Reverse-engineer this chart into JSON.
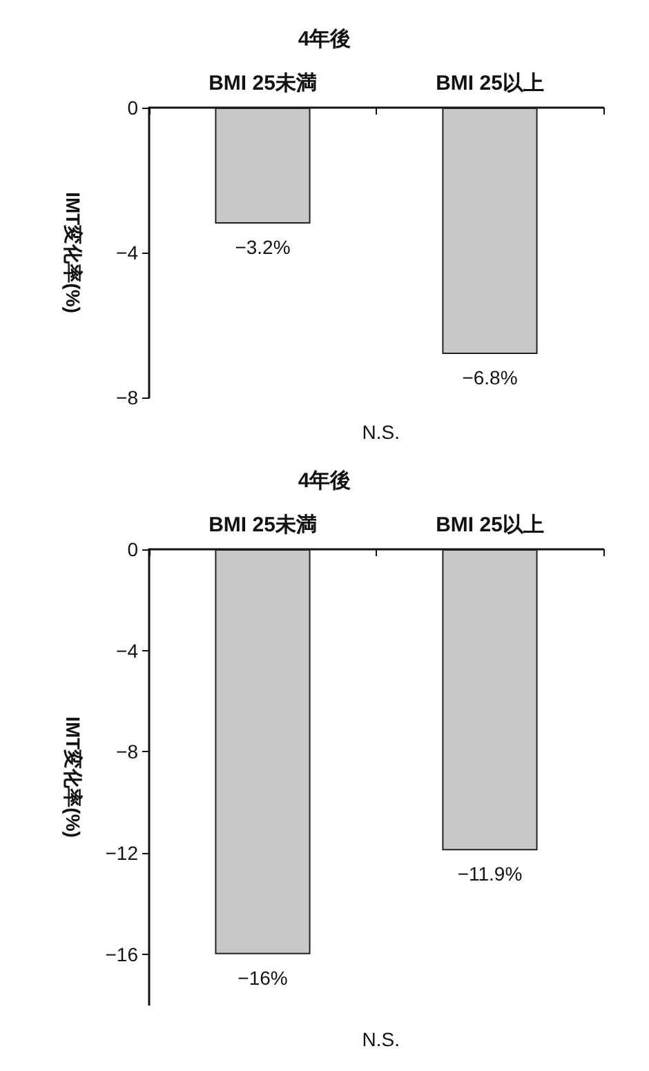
{
  "chart_data": [
    {
      "type": "bar",
      "title": "4年後",
      "ylabel": "IMT変化率(%)",
      "categories": [
        "BMI 25未満",
        "BMI 25以上"
      ],
      "values": [
        -3.2,
        -6.8
      ],
      "value_labels": [
        "−3.2%",
        "−6.8%"
      ],
      "color": "#c8c8c8",
      "ylim": [
        -8,
        0
      ],
      "yticks": [
        {
          "value": 0,
          "label": "0"
        },
        {
          "value": -4,
          "label": "−4"
        },
        {
          "value": -8,
          "label": "−8"
        }
      ],
      "grid": false,
      "annotations": [
        "N.S."
      ]
    },
    {
      "type": "bar",
      "title": "4年後",
      "ylabel": "IMT変化率(%)",
      "categories": [
        "BMI 25未満",
        "BMI 25以上"
      ],
      "values": [
        -16,
        -11.9
      ],
      "value_labels": [
        "−16%",
        "−11.9%"
      ],
      "color": "#c8c8c8",
      "ylim": [
        -18,
        0
      ],
      "yticks": [
        {
          "value": 0,
          "label": "0"
        },
        {
          "value": -4,
          "label": "−4"
        },
        {
          "value": -8,
          "label": "−8"
        },
        {
          "value": -12,
          "label": "−12"
        },
        {
          "value": -16,
          "label": "−16"
        }
      ],
      "grid": false,
      "annotations": [
        "N.S."
      ]
    }
  ]
}
